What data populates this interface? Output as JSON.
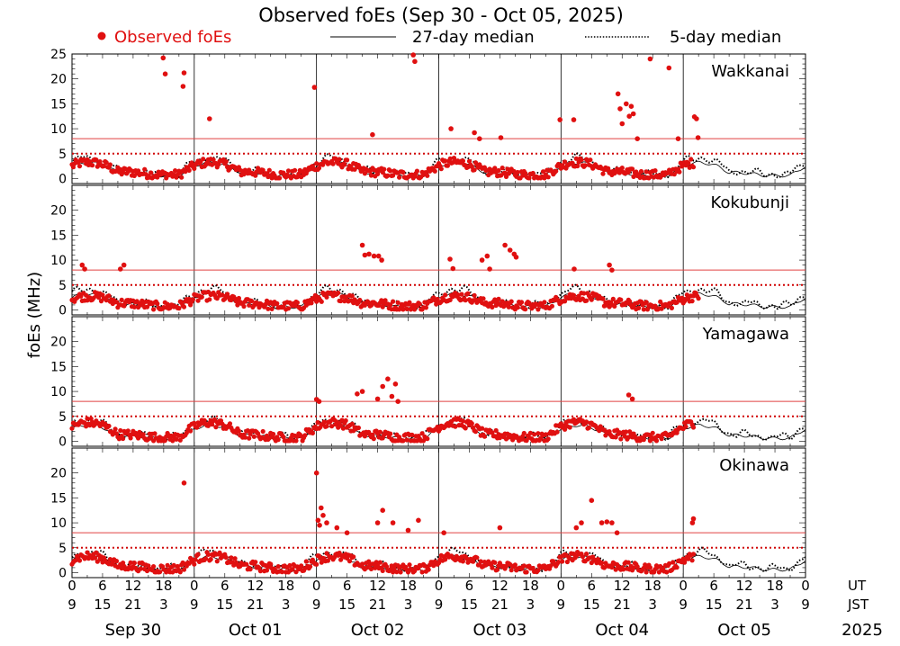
{
  "title": "Observed foEs (Sep 30 - Oct 05, 2025)",
  "legend": {
    "observed": "Observed foEs",
    "median27": "27-day median",
    "median5": "5-day median"
  },
  "y_axis_label": "foEs (MHz)",
  "ut_label": "UT",
  "jst_label": "JST",
  "year_label": "2025",
  "colors": {
    "observed": "#e01010",
    "reference_line": "#e04040",
    "median": "#000000"
  },
  "chart_data": {
    "type": "scatter",
    "xlabel": "UT / JST",
    "ylabel": "foEs (MHz)",
    "ylim": [
      -1,
      25
    ],
    "y_ticks": [
      0,
      5,
      10,
      15,
      20,
      25
    ],
    "days": [
      "Sep 30",
      "Oct 01",
      "Oct 02",
      "Oct 03",
      "Oct 04",
      "Oct 05"
    ],
    "ut_ticks": [
      "0",
      "6",
      "12",
      "18"
    ],
    "jst_ticks": [
      "9",
      "15",
      "21",
      "3"
    ],
    "reference_lines_mhz": [
      5,
      8
    ],
    "grid": true,
    "legend_position": "top",
    "stations": [
      {
        "name": "Wakkanai",
        "observed_highlights": [
          [
            17.9,
            24.2
          ],
          [
            18.3,
            21.0
          ],
          [
            22.0,
            21.2
          ],
          [
            21.8,
            18.5
          ],
          [
            27.0,
            12.0
          ],
          [
            47.6,
            18.3
          ],
          [
            67.0,
            24.8
          ],
          [
            67.3,
            23.5
          ],
          [
            59.0,
            8.8
          ],
          [
            74.4,
            10.0
          ],
          [
            79.0,
            9.2
          ],
          [
            80.0,
            8.0
          ],
          [
            84.2,
            8.2
          ],
          [
            95.8,
            11.8
          ],
          [
            98.5,
            11.8
          ],
          [
            107.2,
            17.0
          ],
          [
            107.6,
            14.0
          ],
          [
            108.0,
            11.0
          ],
          [
            108.8,
            15.0
          ],
          [
            109.4,
            12.5
          ],
          [
            109.8,
            14.5
          ],
          [
            110.2,
            13.0
          ],
          [
            111.0,
            8.0
          ],
          [
            113.5,
            24.0
          ],
          [
            117.2,
            22.2
          ],
          [
            119.0,
            8.0
          ],
          [
            122.2,
            12.4
          ],
          [
            122.6,
            12.0
          ],
          [
            122.9,
            8.2
          ]
        ],
        "observed_range": {
          "start_h": 0,
          "end_h": 122,
          "base_mhz": 2.5
        }
      },
      {
        "name": "Kokubunji",
        "observed_highlights": [
          [
            2.0,
            9.0
          ],
          [
            2.5,
            8.2
          ],
          [
            9.5,
            8.2
          ],
          [
            10.2,
            9.0
          ],
          [
            57.0,
            13.0
          ],
          [
            57.5,
            11.0
          ],
          [
            58.3,
            11.2
          ],
          [
            59.3,
            10.8
          ],
          [
            60.2,
            10.8
          ],
          [
            60.8,
            10.0
          ],
          [
            74.2,
            10.2
          ],
          [
            74.8,
            8.3
          ],
          [
            80.5,
            10.0
          ],
          [
            81.5,
            10.8
          ],
          [
            82.0,
            8.2
          ],
          [
            85.0,
            13.0
          ],
          [
            86.0,
            12.0
          ],
          [
            86.8,
            11.2
          ],
          [
            87.2,
            10.6
          ],
          [
            98.6,
            8.2
          ],
          [
            105.5,
            9.0
          ],
          [
            106.0,
            8.0
          ]
        ],
        "observed_range": {
          "start_h": 0,
          "end_h": 123,
          "base_mhz": 2.0
        }
      },
      {
        "name": "Yamagawa",
        "observed_highlights": [
          [
            48.0,
            8.4
          ],
          [
            48.5,
            8.0
          ],
          [
            56.0,
            9.5
          ],
          [
            57.0,
            10.0
          ],
          [
            60.0,
            8.5
          ],
          [
            61.0,
            11.0
          ],
          [
            62.0,
            12.5
          ],
          [
            62.8,
            9.0
          ],
          [
            63.5,
            11.5
          ],
          [
            64.0,
            8.0
          ],
          [
            109.3,
            9.3
          ],
          [
            110.0,
            8.5
          ]
        ],
        "observed_range": {
          "start_h": 0,
          "end_h": 122,
          "base_mhz": 3.0
        }
      },
      {
        "name": "Okinawa",
        "observed_highlights": [
          [
            22.0,
            18.0
          ],
          [
            48.0,
            20.0
          ],
          [
            48.3,
            10.5
          ],
          [
            48.6,
            9.5
          ],
          [
            48.9,
            13.0
          ],
          [
            49.3,
            11.5
          ],
          [
            50.0,
            10.0
          ],
          [
            52.0,
            9.0
          ],
          [
            54.0,
            8.0
          ],
          [
            60.0,
            10.0
          ],
          [
            61.0,
            12.5
          ],
          [
            63.0,
            10.0
          ],
          [
            66.0,
            8.5
          ],
          [
            68.0,
            10.5
          ],
          [
            73.0,
            8.0
          ],
          [
            84.0,
            9.0
          ],
          [
            99.0,
            9.0
          ],
          [
            100.0,
            10.0
          ],
          [
            102.0,
            14.5
          ],
          [
            104.0,
            10.0
          ],
          [
            105.0,
            10.2
          ],
          [
            106.0,
            10.0
          ],
          [
            107.0,
            8.0
          ],
          [
            121.8,
            10.0
          ],
          [
            122.0,
            10.8
          ]
        ],
        "observed_range": {
          "start_h": 0,
          "end_h": 122,
          "base_mhz": 2.5
        }
      }
    ]
  }
}
